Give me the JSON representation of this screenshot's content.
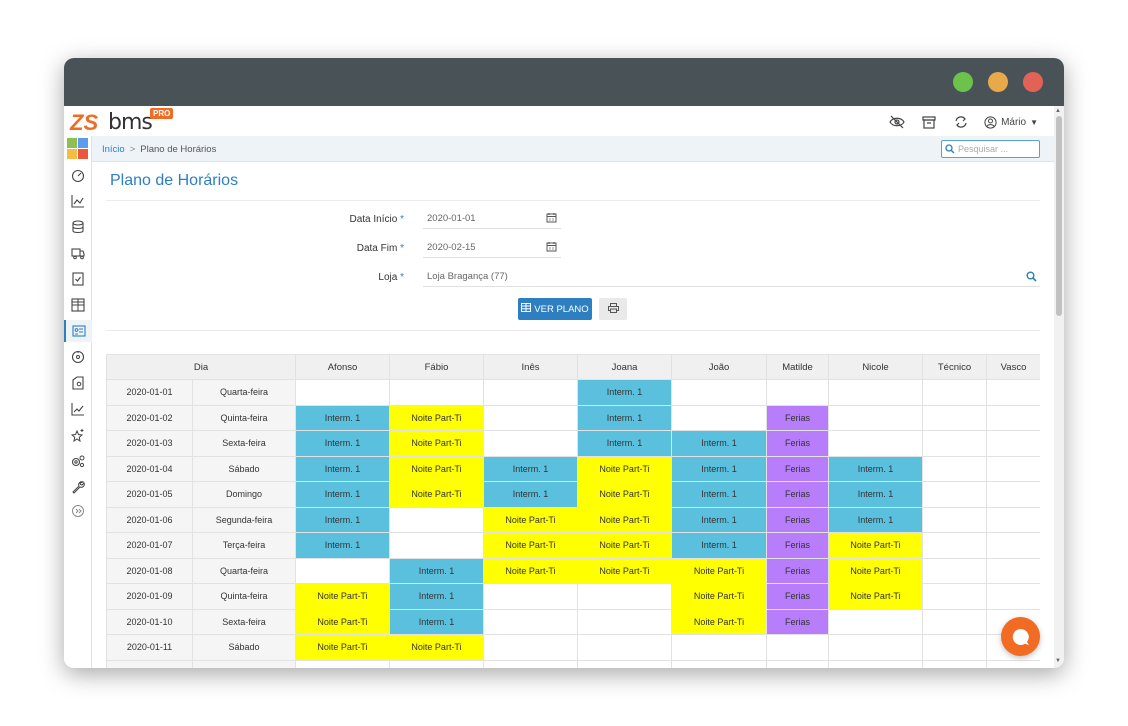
{
  "brand": {
    "logo_zs": "ZS",
    "logo_bms": "bms",
    "logo_pro": "PRO"
  },
  "topbar": {
    "user_name": "Mário"
  },
  "breadcrumb": {
    "home": "Início",
    "separator": ">",
    "current": "Plano de Horários"
  },
  "search": {
    "placeholder": "Pesquisar ..."
  },
  "page": {
    "title": "Plano de Horários"
  },
  "form": {
    "start_label": "Data Início",
    "start_value": "2020-01-01",
    "end_label": "Data Fim",
    "end_value": "2020-02-15",
    "store_label": "Loja",
    "store_value": "Loja Bragança (77)",
    "required_mark": "*"
  },
  "buttons": {
    "view_plan": "VER PLANO"
  },
  "table": {
    "headers": [
      "Dia",
      "Afonso",
      "Fábio",
      "Inês",
      "Joana",
      "João",
      "Matilde",
      "Nicole",
      "Técnico",
      "Vasco"
    ],
    "rows": [
      {
        "date": "2020-01-01",
        "weekday": "Quarta-feira",
        "cells": [
          "",
          "",
          "",
          "Interm. 1",
          "",
          "",
          "",
          "",
          ""
        ]
      },
      {
        "date": "2020-01-02",
        "weekday": "Quinta-feira",
        "cells": [
          "Interm. 1",
          "Noite Part-Ti",
          "",
          "Interm. 1",
          "",
          "Ferias",
          "",
          "",
          ""
        ]
      },
      {
        "date": "2020-01-03",
        "weekday": "Sexta-feira",
        "cells": [
          "Interm. 1",
          "Noite Part-Ti",
          "",
          "Interm. 1",
          "Interm. 1",
          "Ferias",
          "",
          "",
          ""
        ]
      },
      {
        "date": "2020-01-04",
        "weekday": "Sábado",
        "cells": [
          "Interm. 1",
          "Noite Part-Ti",
          "Interm. 1",
          "Noite Part-Ti",
          "Interm. 1",
          "Ferias",
          "Interm. 1",
          "",
          ""
        ]
      },
      {
        "date": "2020-01-05",
        "weekday": "Domingo",
        "cells": [
          "Interm. 1",
          "Noite Part-Ti",
          "Interm. 1",
          "Noite Part-Ti",
          "Interm. 1",
          "Ferias",
          "Interm. 1",
          "",
          ""
        ]
      },
      {
        "date": "2020-01-06",
        "weekday": "Segunda-feira",
        "cells": [
          "Interm. 1",
          "",
          "Noite Part-Ti",
          "Noite Part-Ti",
          "Interm. 1",
          "Ferias",
          "Interm. 1",
          "",
          ""
        ]
      },
      {
        "date": "2020-01-07",
        "weekday": "Terça-feira",
        "cells": [
          "Interm. 1",
          "",
          "Noite Part-Ti",
          "Noite Part-Ti",
          "Interm. 1",
          "Ferias",
          "Noite Part-Ti",
          "",
          ""
        ]
      },
      {
        "date": "2020-01-08",
        "weekday": "Quarta-feira",
        "cells": [
          "",
          "Interm. 1",
          "Noite Part-Ti",
          "Noite Part-Ti",
          "Noite Part-Ti",
          "Ferias",
          "Noite Part-Ti",
          "",
          ""
        ]
      },
      {
        "date": "2020-01-09",
        "weekday": "Quinta-feira",
        "cells": [
          "Noite Part-Ti",
          "Interm. 1",
          "",
          "",
          "Noite Part-Ti",
          "Ferias",
          "Noite Part-Ti",
          "",
          ""
        ]
      },
      {
        "date": "2020-01-10",
        "weekday": "Sexta-feira",
        "cells": [
          "Noite Part-Ti",
          "Interm. 1",
          "",
          "",
          "Noite Part-Ti",
          "Ferias",
          "",
          "",
          ""
        ]
      },
      {
        "date": "2020-01-11",
        "weekday": "Sábado",
        "cells": [
          "Noite Part-Ti",
          "Noite Part-Ti",
          "",
          "",
          "",
          "",
          "",
          "",
          ""
        ]
      },
      {
        "date": "",
        "weekday": "",
        "cells": [
          "",
          "",
          "",
          "",
          "",
          "",
          "",
          "",
          ""
        ]
      }
    ]
  },
  "colors": {
    "accent": "#2d7fc1",
    "interm": "#5bc0de",
    "noite": "#ffff00",
    "ferias": "#b87dfb",
    "brand_orange": "#f26b23"
  },
  "sidebar_icons": [
    "apps-icon",
    "dashboard-icon",
    "chart-icon",
    "database-icon",
    "truck-icon",
    "checklist-icon",
    "grid-icon",
    "id-card-icon",
    "gauge-icon",
    "tag-icon",
    "trend-icon",
    "stars-icon",
    "settings-icon",
    "wrench-icon",
    "expand-icon"
  ]
}
